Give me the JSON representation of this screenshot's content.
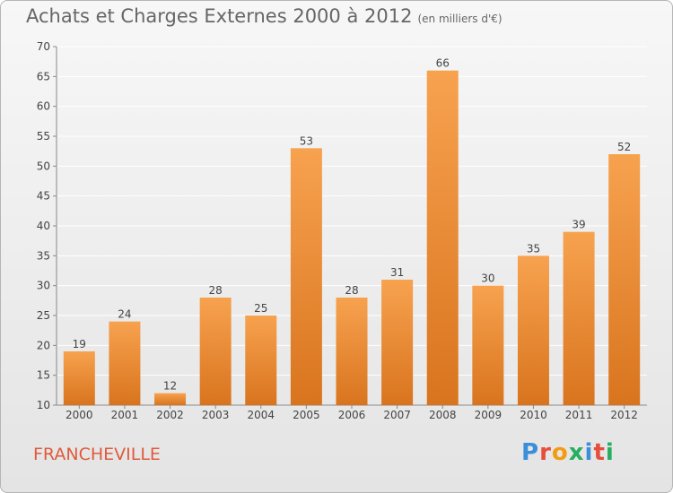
{
  "header": {
    "title": "Achats et Charges Externes 2000 à 2012",
    "subtitle": "(en milliers d'€)"
  },
  "footer": {
    "place": "FRANCHEVILLE",
    "logo_text": "Proxiti",
    "logo_colors": [
      "#3a8fd8",
      "#e74c3c",
      "#f39c12",
      "#27ae60",
      "#3a8fd8",
      "#e74c3c",
      "#27ae60"
    ]
  },
  "chart_data": {
    "type": "bar",
    "title": "Achats et Charges Externes 2000 à 2012",
    "subtitle": "(en milliers d'€)",
    "categories": [
      "2000",
      "2001",
      "2002",
      "2003",
      "2004",
      "2005",
      "2006",
      "2007",
      "2008",
      "2009",
      "2010",
      "2011",
      "2012"
    ],
    "values": [
      19,
      24,
      12,
      28,
      25,
      53,
      28,
      31,
      66,
      30,
      35,
      39,
      52
    ],
    "ylim": [
      10,
      70
    ],
    "yticks": [
      10,
      15,
      20,
      25,
      30,
      35,
      40,
      45,
      50,
      55,
      60,
      65,
      70
    ],
    "grid": true,
    "bar_color_top": "#f7a24f",
    "bar_color_bottom": "#d9741e"
  }
}
